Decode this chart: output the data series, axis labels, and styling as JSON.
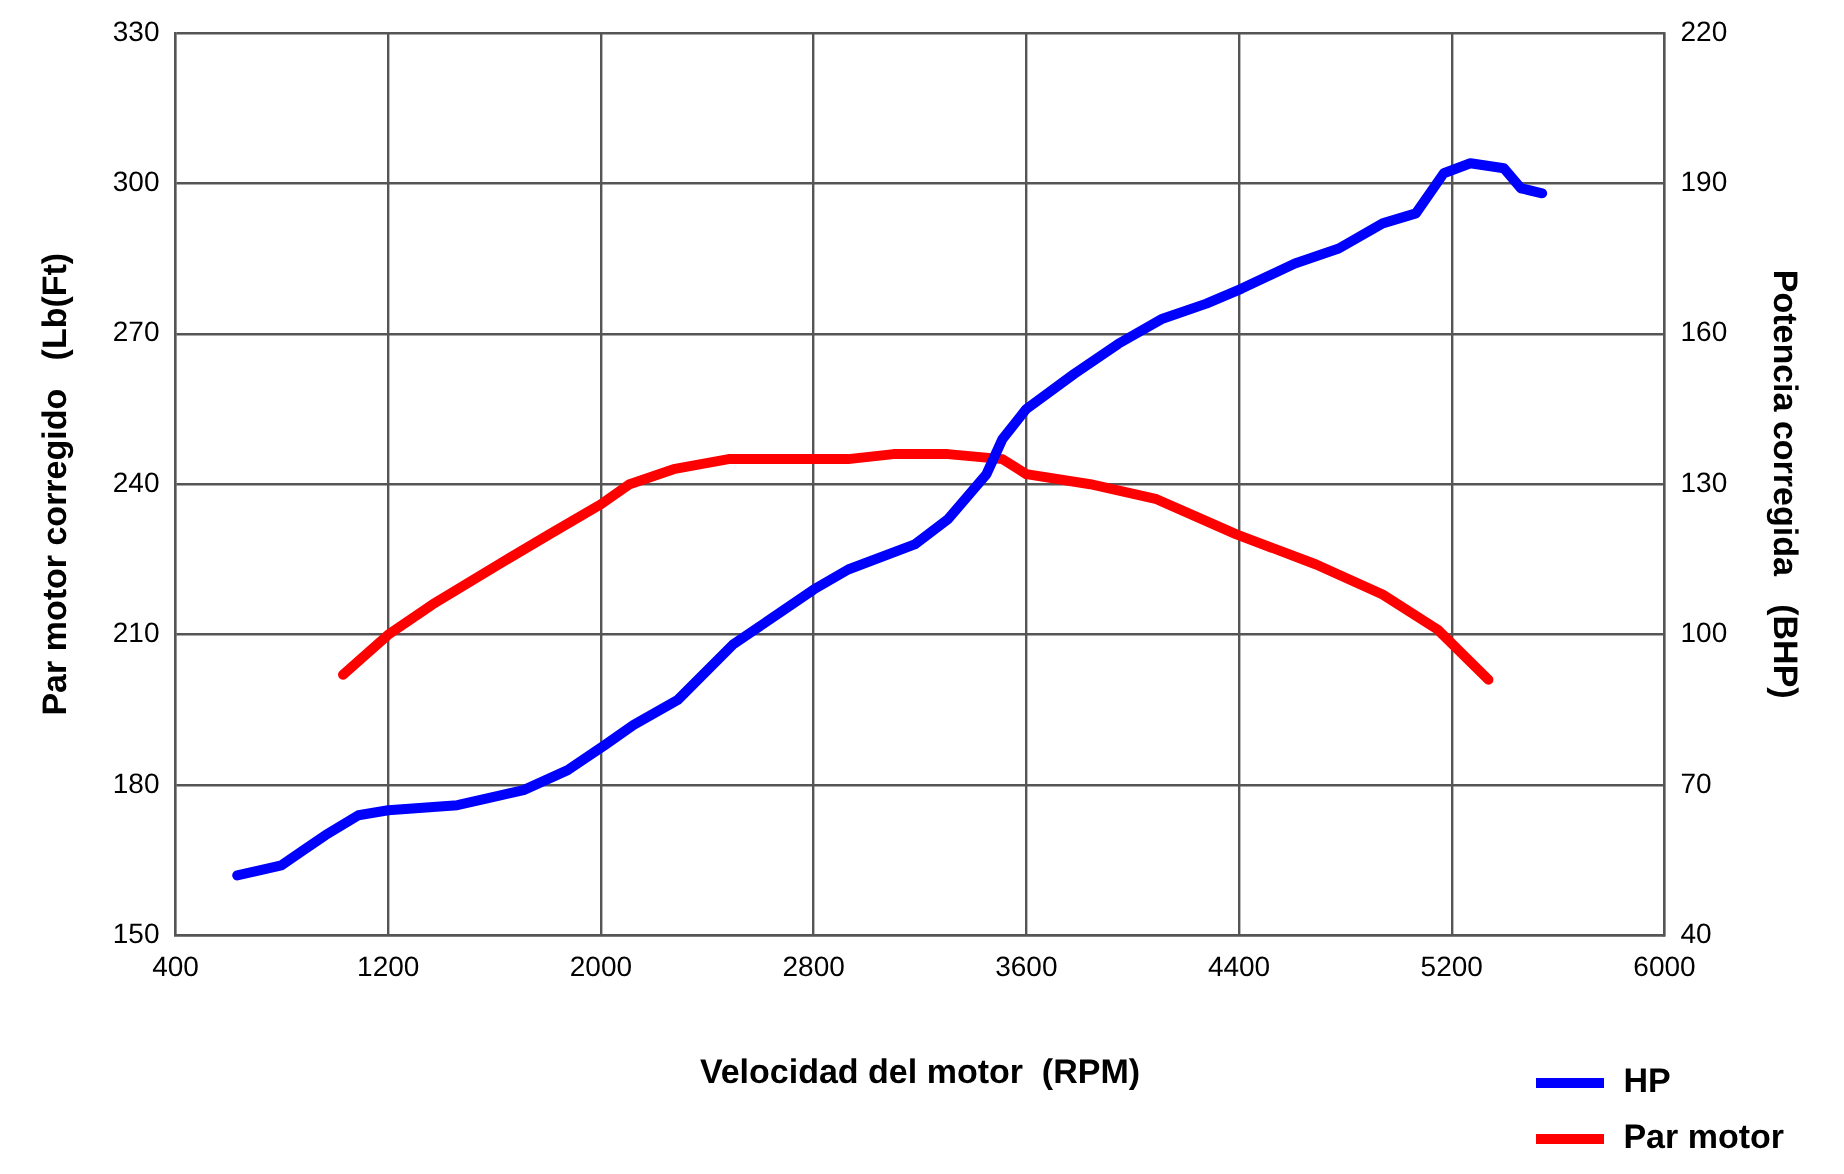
{
  "chart_data": {
    "type": "line",
    "xlabel": "Velocidad del motor  (RPM)",
    "ylabel": "Par motor corregido   (Lb(Ft)",
    "y2label": "Potencia corregida   (BHP)",
    "xlim": [
      400,
      6000
    ],
    "xticks": [
      400,
      1200,
      2000,
      2800,
      3600,
      4400,
      5200,
      6000
    ],
    "ylim": [
      150,
      330
    ],
    "yticks": [
      150,
      180,
      210,
      240,
      270,
      300,
      330
    ],
    "y2lim": [
      40,
      220
    ],
    "y2ticks": [
      40,
      70,
      100,
      130,
      160,
      190,
      220
    ],
    "grid": true,
    "legend": "bottom right",
    "marker": "none",
    "line_style": "solid",
    "series": [
      {
        "name": "HP",
        "color": "#0000ff",
        "axis": "y2",
        "x": [
          632,
          798,
          880,
          963,
          1088,
          1200,
          1460,
          1626,
          1709,
          1875,
          2015,
          2123,
          2289,
          2496,
          2662,
          2800,
          2930,
          3180,
          3305,
          3450,
          3510,
          3600,
          3780,
          3946,
          4112,
          4277,
          4410,
          4610,
          4775,
          4940,
          5065,
          5170,
          5270,
          5396,
          5460,
          5540
        ],
        "values": [
          52,
          54,
          57,
          60,
          64,
          65,
          66,
          68,
          69,
          73,
          78,
          82,
          87,
          98,
          104,
          109,
          113,
          118,
          123,
          132,
          139,
          145,
          152,
          158,
          163,
          166,
          169,
          174,
          177,
          182,
          184,
          192,
          194,
          193,
          189,
          188
        ]
      },
      {
        "name": "Par motor",
        "color": "#ff0000",
        "axis": "y",
        "x": [
          1030,
          1200,
          1366,
          1615,
          1806,
          2000,
          2108,
          2273,
          2480,
          2647,
          2800,
          2930,
          3100,
          3305,
          3510,
          3600,
          3840,
          4090,
          4390,
          4690,
          4940,
          5147,
          5338
        ],
        "values": [
          202,
          210,
          216,
          224,
          230,
          236,
          240,
          243,
          245,
          245,
          245,
          245,
          246,
          246,
          245,
          242,
          240,
          237,
          230,
          224,
          218,
          211,
          201
        ]
      }
    ]
  }
}
